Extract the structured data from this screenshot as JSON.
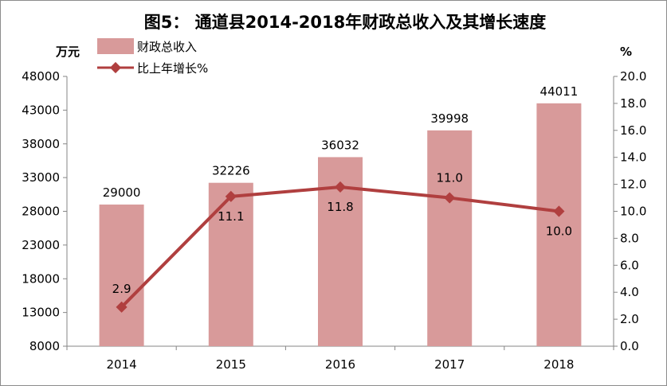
{
  "chart_data": {
    "type": "bar",
    "title": "图5： 通道县2014-2018年财政总收入及其增长速度",
    "categories": [
      "2014",
      "2015",
      "2016",
      "2017",
      "2018"
    ],
    "series": [
      {
        "name": "财政总收入",
        "type": "bar",
        "axis": "left",
        "values": [
          29000,
          32226,
          36032,
          39998,
          44011
        ],
        "labels": [
          "29000",
          "32226",
          "36032",
          "39998",
          "44011"
        ]
      },
      {
        "name": "比上年增长%",
        "type": "line",
        "axis": "right",
        "values": [
          2.9,
          11.1,
          11.8,
          11.0,
          10.0
        ],
        "labels": [
          "2.9",
          "11.1",
          "11.8",
          "11.0",
          "10.0"
        ]
      }
    ],
    "y_left": {
      "label": "万元",
      "range": [
        8000,
        48000
      ],
      "ticks": [
        "8000",
        "13000",
        "18000",
        "23000",
        "28000",
        "33000",
        "38000",
        "43000",
        "48000"
      ]
    },
    "y_right": {
      "label": "%",
      "range": [
        0,
        20
      ],
      "ticks": [
        "0.0",
        "2.0",
        "4.0",
        "6.0",
        "8.0",
        "10.0",
        "12.0",
        "14.0",
        "16.0",
        "18.0",
        "20.0"
      ]
    },
    "grid": false,
    "legend": "top-left",
    "colors": {
      "bar": "#d89a9a",
      "line": "#b03f3f",
      "axis": "#868686"
    }
  }
}
